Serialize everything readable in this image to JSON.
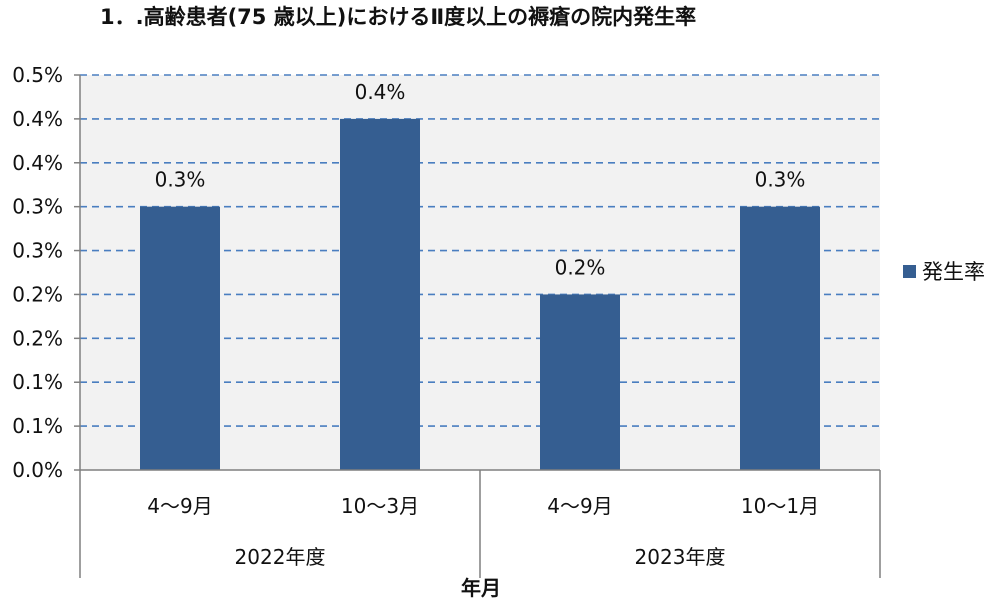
{
  "chart_data": {
    "type": "bar",
    "title": "1．.高齢患者(75 歳以上)におけるⅡ度以上の褥瘡の院内発生率",
    "categories": [
      "4～9月",
      "10～3月",
      "4～9月",
      "10～1月"
    ],
    "groups": [
      {
        "label": "2022年度",
        "categories": 2
      },
      {
        "label": "2023年度",
        "categories": 2
      }
    ],
    "series": [
      {
        "name": "発生率",
        "values": [
          0.3,
          0.4,
          0.2,
          0.3
        ],
        "labels": [
          "0.3%",
          "0.4%",
          "0.2%",
          "0.3%"
        ],
        "color": "#355E91"
      }
    ],
    "y_ticks": [
      "0.0%",
      "0.1%",
      "0.1%",
      "0.2%",
      "0.2%",
      "0.3%",
      "0.3%",
      "0.4%",
      "0.4%",
      "0.5%"
    ],
    "ylim": [
      0,
      0.45
    ],
    "xlabel": "年月",
    "ylabel": "",
    "grid": true,
    "legend_position": "right",
    "colors": {
      "bar": "#355E91",
      "plot_bg": "#F2F2F2",
      "grid": "#4A7EC0",
      "axis": "#7F7F7F"
    }
  }
}
